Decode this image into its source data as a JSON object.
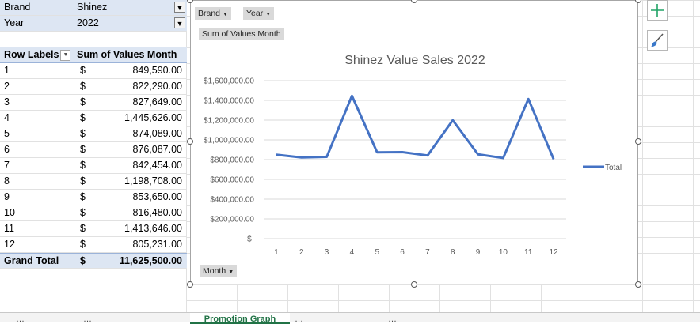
{
  "pivot": {
    "filters": [
      {
        "field": "Brand",
        "value": "Shinez"
      },
      {
        "field": "Year",
        "value": "2022"
      }
    ],
    "header": {
      "row_labels": "Row Labels",
      "sum_label": "Sum of Values Month"
    },
    "currency": "$",
    "rows": [
      {
        "label": "1",
        "value": "849,590.00"
      },
      {
        "label": "2",
        "value": "822,290.00"
      },
      {
        "label": "3",
        "value": "827,649.00"
      },
      {
        "label": "4",
        "value": "1,445,626.00"
      },
      {
        "label": "5",
        "value": "874,089.00"
      },
      {
        "label": "6",
        "value": "876,087.00"
      },
      {
        "label": "7",
        "value": "842,454.00"
      },
      {
        "label": "8",
        "value": "1,198,708.00"
      },
      {
        "label": "9",
        "value": "853,650.00"
      },
      {
        "label": "10",
        "value": "816,480.00"
      },
      {
        "label": "11",
        "value": "1,413,646.00"
      },
      {
        "label": "12",
        "value": "805,231.00"
      }
    ],
    "total": {
      "label": "Grand Total",
      "value": "11,625,500.00"
    }
  },
  "chart_fields": {
    "brand": "Brand",
    "year": "Year",
    "values": "Sum of Values Month",
    "axis": "Month"
  },
  "chart_data": {
    "type": "line",
    "title": "Shinez Value Sales 2022",
    "x": [
      1,
      2,
      3,
      4,
      5,
      6,
      7,
      8,
      9,
      10,
      11,
      12
    ],
    "x_tick_labels": [
      "1",
      "2",
      "3",
      "4",
      "5",
      "6",
      "7",
      "8",
      "9",
      "10",
      "11",
      "12"
    ],
    "series": [
      {
        "name": "Total",
        "color": "#4472c4",
        "values": [
          849590,
          822290,
          827649,
          1445626,
          874089,
          876087,
          842454,
          1198708,
          853650,
          816480,
          1413646,
          805231
        ]
      }
    ],
    "y_tick_labels": [
      "$-",
      "$200,000.00",
      "$400,000.00",
      "$600,000.00",
      "$800,000.00",
      "$1,000,000.00",
      "$1,200,000.00",
      "$1,400,000.00",
      "$1,600,000.00"
    ],
    "y_ticks": [
      0,
      200000,
      400000,
      600000,
      800000,
      1000000,
      1200000,
      1400000,
      1600000
    ],
    "ylim": [
      0,
      1600000
    ],
    "grid": true,
    "legend": "right"
  },
  "tabs": [
    "…",
    "…",
    "Promotion Graph",
    "…",
    "…"
  ]
}
